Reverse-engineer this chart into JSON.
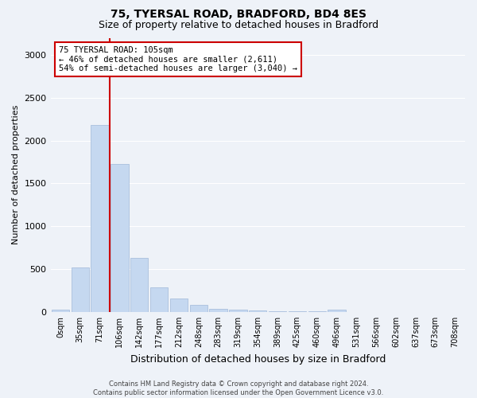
{
  "title1": "75, TYERSAL ROAD, BRADFORD, BD4 8ES",
  "title2": "Size of property relative to detached houses in Bradford",
  "xlabel": "Distribution of detached houses by size in Bradford",
  "ylabel": "Number of detached properties",
  "bin_labels": [
    "0sqm",
    "35sqm",
    "71sqm",
    "106sqm",
    "142sqm",
    "177sqm",
    "212sqm",
    "248sqm",
    "283sqm",
    "319sqm",
    "354sqm",
    "389sqm",
    "425sqm",
    "460sqm",
    "496sqm",
    "531sqm",
    "566sqm",
    "602sqm",
    "637sqm",
    "673sqm",
    "708sqm"
  ],
  "bar_values": [
    25,
    520,
    2185,
    1730,
    635,
    290,
    155,
    80,
    40,
    25,
    15,
    10,
    5,
    5,
    25,
    0,
    0,
    0,
    0,
    0,
    0
  ],
  "bar_color": "#c5d8f0",
  "bar_edge_color": "#a0b8d8",
  "vline_color": "#cc0000",
  "annotation_text": "75 TYERSAL ROAD: 105sqm\n← 46% of detached houses are smaller (2,611)\n54% of semi-detached houses are larger (3,040) →",
  "annotation_box_color": "#ffffff",
  "annotation_box_edge": "#cc0000",
  "ylim": [
    0,
    3200
  ],
  "yticks": [
    0,
    500,
    1000,
    1500,
    2000,
    2500,
    3000
  ],
  "footnote": "Contains HM Land Registry data © Crown copyright and database right 2024.\nContains public sector information licensed under the Open Government Licence v3.0.",
  "bg_color": "#eef2f8",
  "plot_bg_color": "#eef2f8"
}
